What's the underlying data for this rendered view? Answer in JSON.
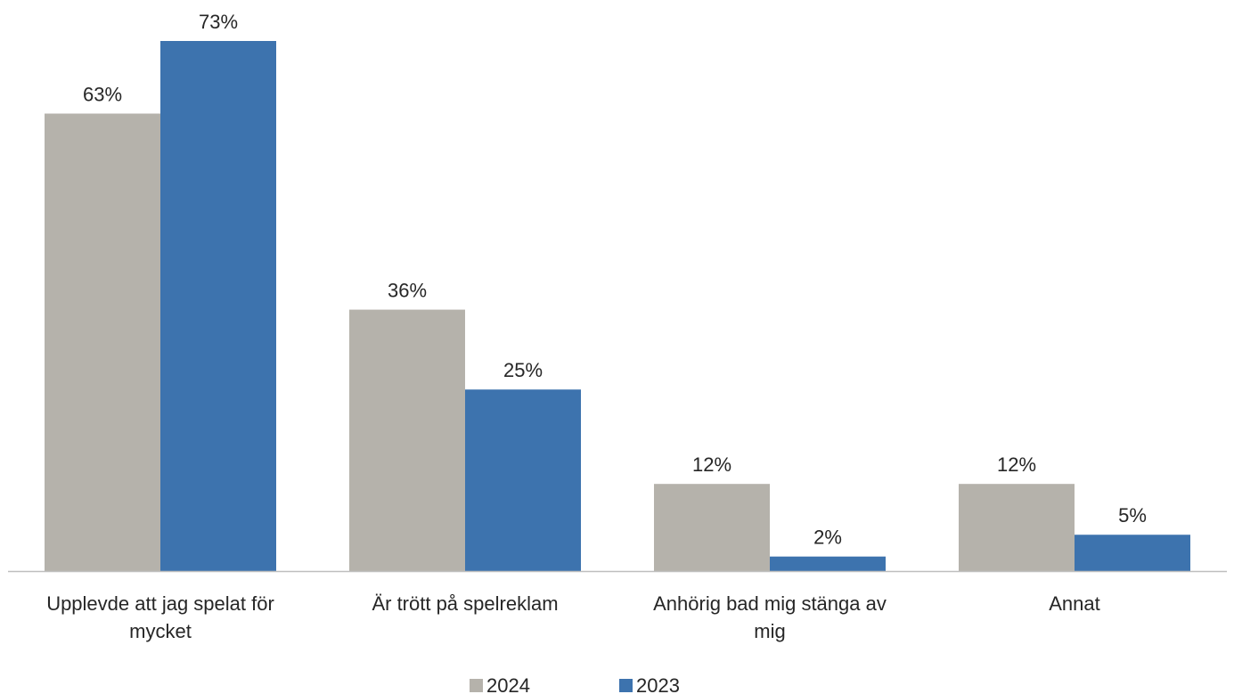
{
  "chart_data": {
    "type": "bar",
    "categories": [
      [
        "Upplevde att jag spelat för",
        "mycket"
      ],
      [
        "Är trött på spelreklam"
      ],
      [
        "Anhörig bad mig stänga av",
        "mig"
      ],
      [
        "Annat"
      ]
    ],
    "series": [
      {
        "name": "2024",
        "color": "#b5b2ab",
        "values": [
          63,
          36,
          12,
          12
        ],
        "labels": [
          "63%",
          "36%",
          "12%",
          "12%"
        ]
      },
      {
        "name": "2023",
        "color": "#3d73ae",
        "values": [
          73,
          25,
          2,
          5
        ],
        "labels": [
          "73%",
          "25%",
          "2%",
          "5%"
        ]
      }
    ],
    "ylim": [
      0,
      73
    ],
    "grid": false,
    "legend_position": "bottom-center",
    "title": "",
    "xlabel": "",
    "ylabel": ""
  }
}
